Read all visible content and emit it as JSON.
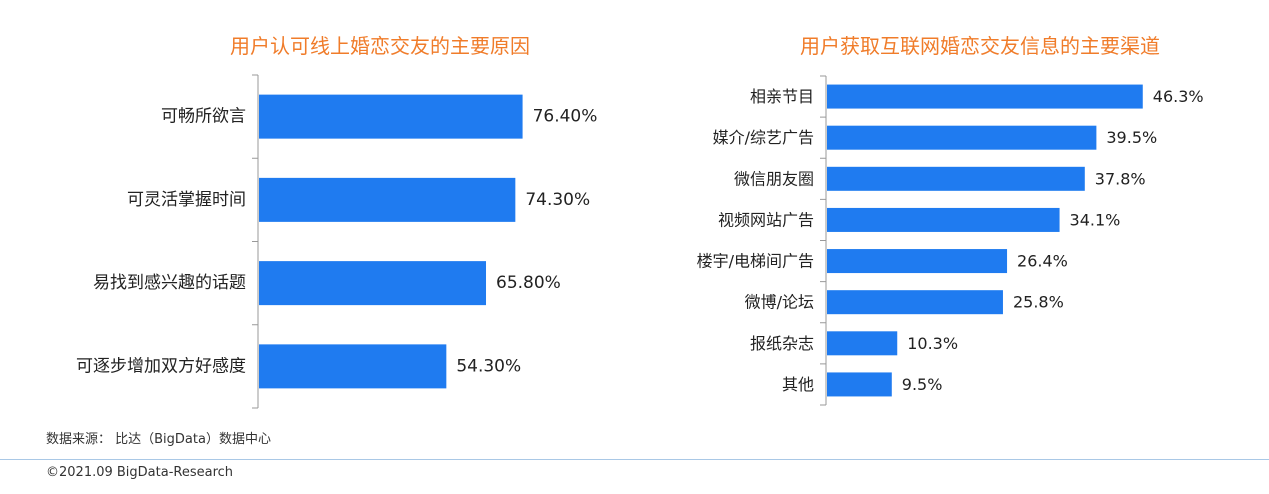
{
  "colors": {
    "bar": "#1f7bf0",
    "title": "#f07c2a",
    "axis": "#999999"
  },
  "chart_data": [
    {
      "type": "bar",
      "orientation": "horizontal",
      "title": "用户认可线上婚恋交友的主要原因",
      "categories": [
        "可畅所欲言",
        "可灵活掌握时间",
        "易找到感兴趣的话题",
        "可逐步增加双方好感度"
      ],
      "values": [
        76.4,
        74.3,
        65.8,
        54.3
      ],
      "data_labels": [
        "76.40%",
        "74.30%",
        "65.80%",
        "54.30%"
      ],
      "xlim": [
        0,
        100
      ]
    },
    {
      "type": "bar",
      "orientation": "horizontal",
      "title": "用户获取互联网婚恋交友信息的主要渠道",
      "categories": [
        "相亲节目",
        "媒介/综艺广告",
        "微信朋友圈",
        "视频网站广告",
        "楼宇/电梯间广告",
        "微博/论坛",
        "报纸杂志",
        "其他"
      ],
      "values": [
        46.3,
        39.5,
        37.8,
        34.1,
        26.4,
        25.8,
        10.3,
        9.5
      ],
      "data_labels": [
        "46.3%",
        "39.5%",
        "37.8%",
        "34.1%",
        "26.4%",
        "25.8%",
        "10.3%",
        "9.5%"
      ],
      "xlim": [
        0,
        50
      ]
    }
  ],
  "footer": {
    "source": "数据来源： 比达（BigData）数据中心",
    "copyright": "©2021.09 BigData-Research"
  }
}
